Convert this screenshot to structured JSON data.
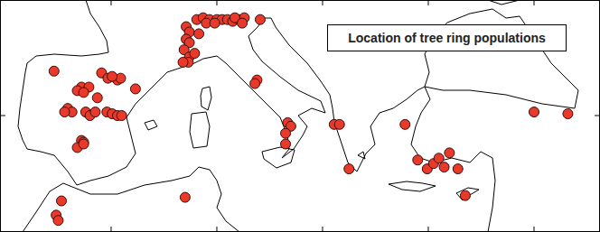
{
  "chart_data": {
    "type": "scatter",
    "title": "Location of tree ring populations",
    "x": [
      -5.4,
      -0.9,
      -0.3,
      0.6,
      0.9,
      0.1,
      -2.8,
      -2.1,
      -3.2,
      -2.6,
      2.3,
      -1.3,
      -4.1,
      -3.7,
      -4.4,
      -2.4,
      -2.0,
      -1.5,
      -0.4,
      0.1,
      0.6,
      1.0,
      -2.8,
      -2.6,
      -3.2,
      -2.6,
      -4.7,
      7.0,
      -5.2,
      -5.0,
      8.1,
      8.7,
      9.3,
      10.0,
      10.5,
      11.0,
      11.5,
      12.1,
      12.6,
      14.1,
      7.1,
      7.4,
      7.1,
      7.4,
      6.9,
      7.4,
      7.3,
      6.8,
      7.9,
      8.3,
      9.0,
      9.8,
      11.7,
      12.4,
      13.8,
      13.6,
      16.7,
      17.0,
      16.5,
      16.5,
      21.1,
      21.6,
      22.5,
      27.8,
      29.0,
      29.9,
      30.5,
      31.0,
      32.0,
      31.5,
      32.8,
      33.5,
      40.0,
      43.2
    ],
    "values": [
      42.5,
      42.4,
      42.1,
      42.0,
      42.1,
      42.2,
      41.6,
      41.6,
      41.4,
      41.3,
      41.5,
      41.0,
      40.4,
      40.2,
      40.2,
      40.2,
      40.0,
      40.2,
      40.2,
      40.1,
      40.0,
      40.0,
      38.6,
      38.5,
      38.2,
      38.4,
      35.2,
      35.4,
      34.4,
      34.1,
      45.4,
      45.5,
      45.4,
      45.4,
      45.4,
      45.4,
      45.3,
      45.4,
      45.5,
      45.4,
      45.0,
      44.7,
      44.3,
      44.1,
      43.7,
      43.3,
      43.0,
      43.0,
      43.5,
      44.6,
      45.2,
      45.2,
      45.5,
      45.2,
      42.0,
      41.8,
      39.6,
      39.4,
      38.4,
      39.0,
      39.5,
      39.5,
      37.0,
      39.5,
      37.5,
      37.0,
      37.3,
      37.6,
      37.9,
      37.1,
      37.0,
      35.5,
      40.2,
      40.1
    ],
    "xlim": [
      -10.51,
      46.24
    ],
    "ylim": [
      33.45,
      46.5
    ],
    "xticks": [
      0,
      10,
      20,
      30,
      40
    ],
    "yticks": [
      40
    ],
    "tick_labels": false,
    "color": "#e8392a",
    "marker": "circle"
  }
}
